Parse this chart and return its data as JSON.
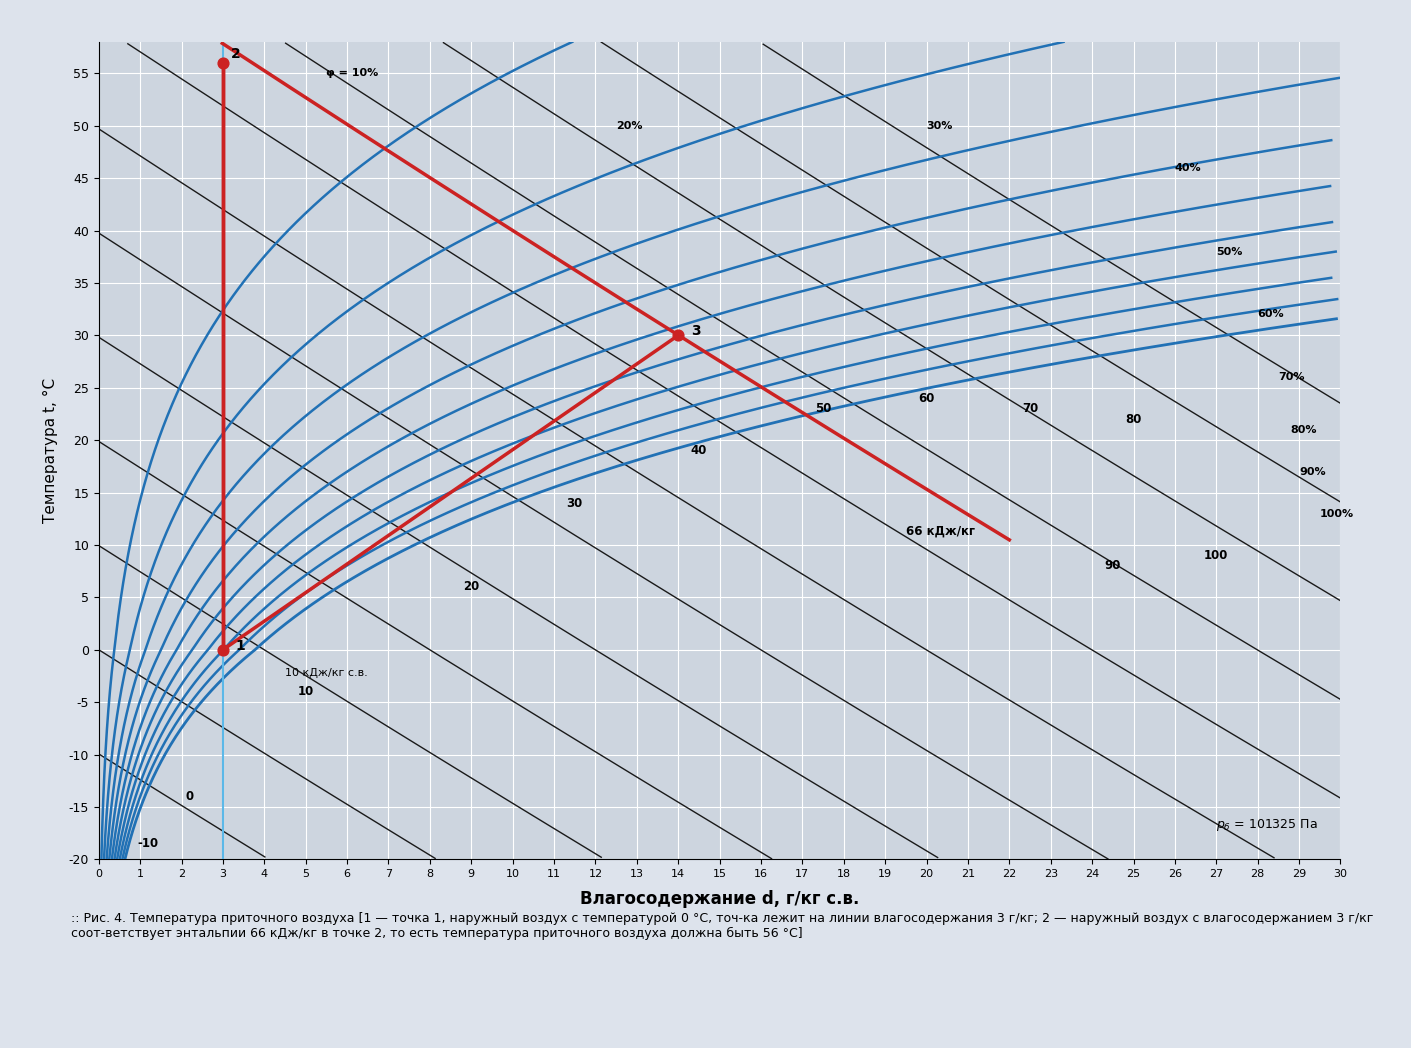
{
  "xlim": [
    0,
    30
  ],
  "ylim": [
    -20,
    58
  ],
  "xlabel": "Влагосодержание d, г/кг с.в.",
  "ylabel": "Температура t, °C",
  "background_color": "#cdd5df",
  "plot_bg_color": "#cdd5df",
  "grid_color": "#ffffff",
  "rh_levels": [
    10,
    20,
    30,
    40,
    50,
    60,
    70,
    80,
    90,
    100
  ],
  "rh_labels": [
    "φ = 10%",
    "20%",
    "30%",
    "40%",
    "50%",
    "60%",
    "70%",
    "80%",
    "90%",
    "100%"
  ],
  "rh_color": "#2171b5",
  "enthalpy_levels": [
    -10,
    0,
    10,
    20,
    30,
    40,
    50,
    60,
    70,
    80,
    90,
    100
  ],
  "enthalpy_color": "#1a1a1a",
  "highlight_line_color": "#cc2222",
  "point1": [
    3,
    0
  ],
  "point2": [
    3,
    56
  ],
  "point3": [
    14,
    30
  ],
  "point_color": "#cc2222",
  "vertical_line_color": "#5bb8e8",
  "p_bar": 101325,
  "caption": ":: Рис. 4. Температура приточного воздуха [1 — точка 1, наружный воздух с температурой 0 °C, точ-ка лежит на линии влагосодержания 3 г/кг; 2 — наружный воздух с влагосодержанием 3 г/кг соот-ветствует энтальпии 66 кДж/кг в точке 2, то есть температура приточного воздуха должна быть 56 °C]"
}
